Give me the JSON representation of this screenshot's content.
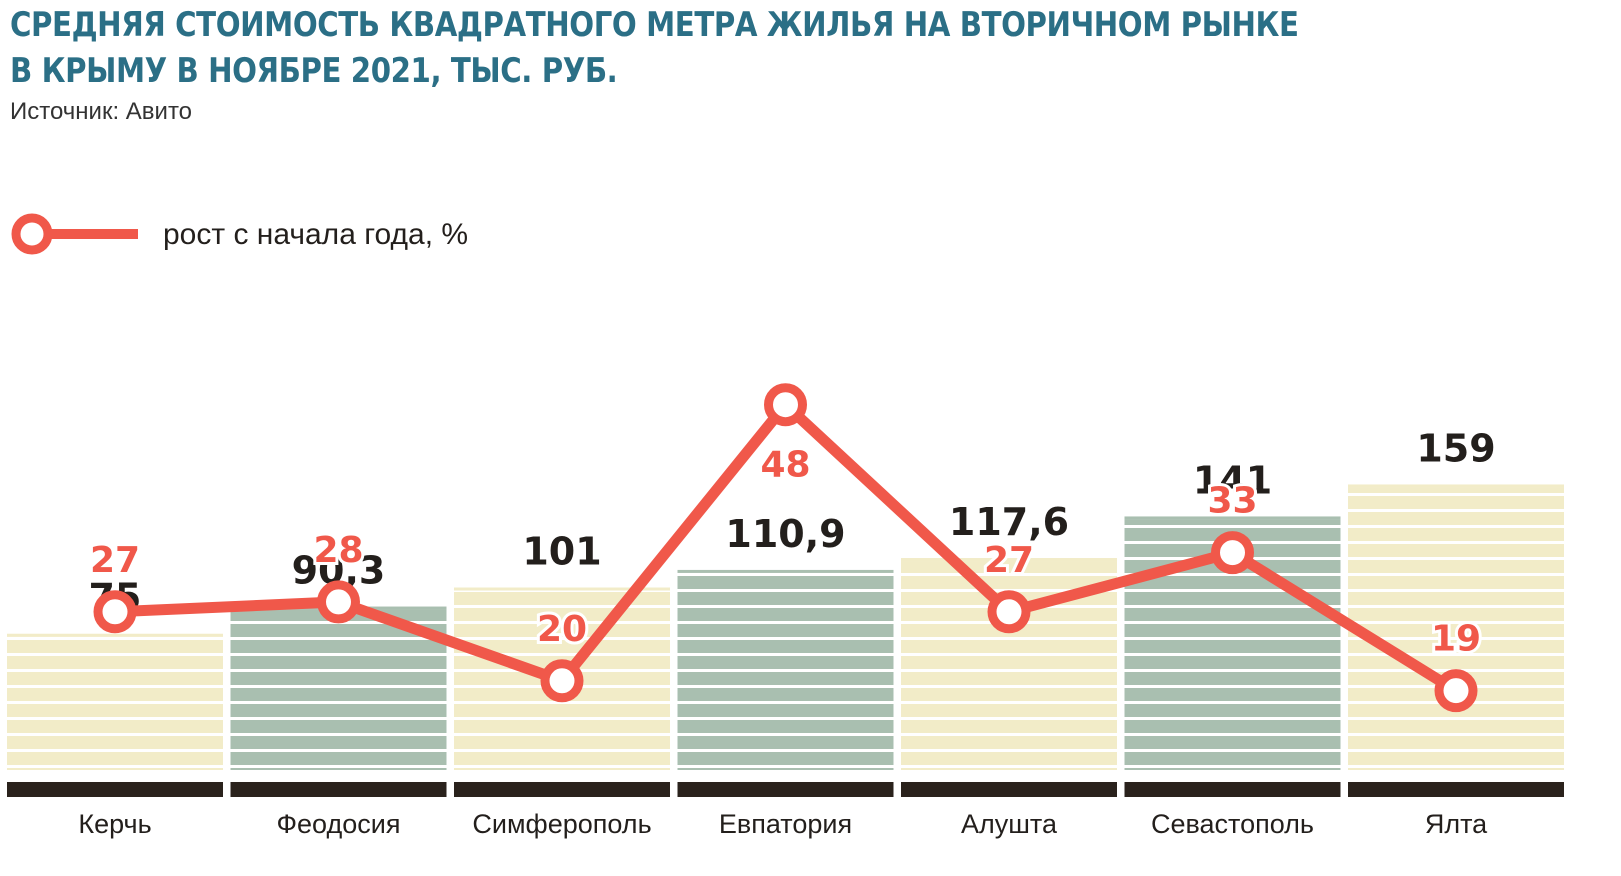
{
  "title_line1": "СРЕДНЯЯ СТОИМОСТЬ КВАДРАТНОГО МЕТРА ЖИЛЬЯ НА ВТОРИЧНОМ РЫНКЕ",
  "title_line2": "В КРЫМУ В НОЯБРЕ 2021, ТЫС. РУБ.",
  "source": "Источник: Авито",
  "colors": {
    "title": "#2b6f86",
    "bar_light": "#f2ecc8",
    "bar_dark": "#a9bfb0",
    "bar_stripe": "#ffffff",
    "baseline": "#2a221c",
    "line": "#f0584a",
    "text": "#231f1c"
  },
  "chart_data": {
    "type": "bar",
    "categories": [
      "Керчь",
      "Феодосия",
      "Симферополь",
      "Евпатория",
      "Алушта",
      "Севастополь",
      "Ялта"
    ],
    "values": [
      75,
      90.3,
      101,
      110.9,
      117.6,
      141,
      159
    ],
    "value_labels": [
      "75",
      "90,3",
      "101",
      "110,9",
      "117,6",
      "141",
      "159"
    ],
    "bar_colors": [
      "light",
      "dark",
      "light",
      "dark",
      "light",
      "dark",
      "light"
    ],
    "line_series": {
      "name": "рост с начала года, %",
      "values": [
        27,
        28,
        20,
        48,
        27,
        33,
        19
      ],
      "labels": [
        "27",
        "28",
        "20",
        "48",
        "27",
        "33",
        "19"
      ]
    },
    "legend_position": "top-left"
  }
}
